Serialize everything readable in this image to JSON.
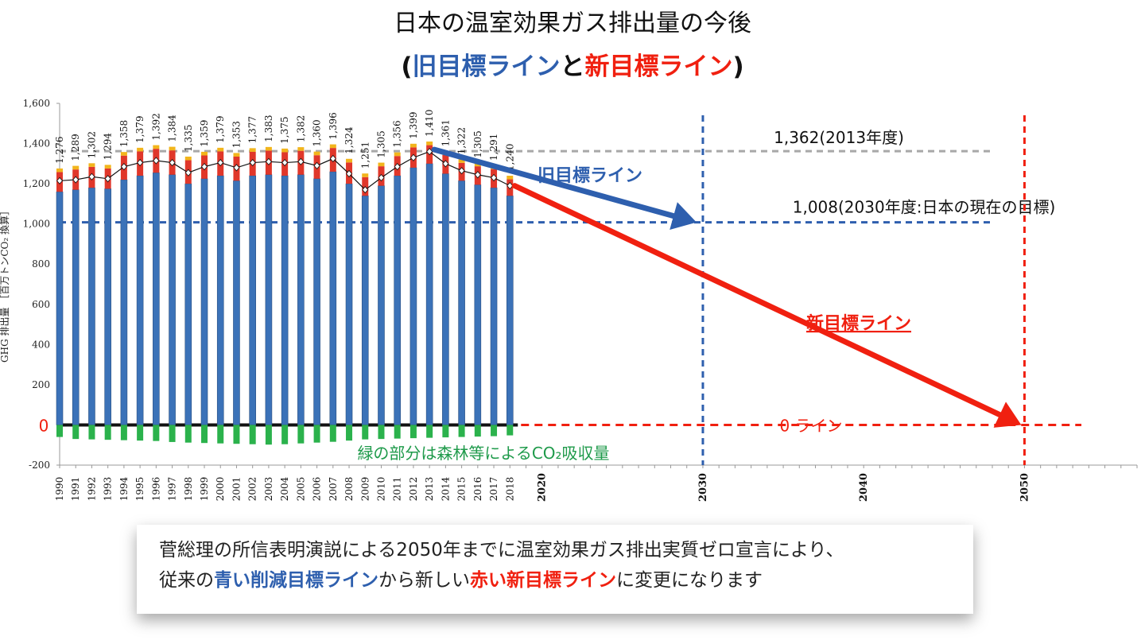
{
  "title": "日本の温室効果ガス排出量の今後",
  "subtitle": {
    "open": "(",
    "old_line": "旧目標ライン",
    "connector": "と",
    "new_line": "新目標ライン",
    "close": ")"
  },
  "chart_data": {
    "type": "bar",
    "ylabel": "GHG 排出量 ［百万トンCO₂ 換算］",
    "ylim": [
      -200,
      1600
    ],
    "yticks": [
      -200,
      0,
      200,
      400,
      600,
      800,
      "1,000",
      "1,200",
      "1,400",
      "1,600"
    ],
    "xlim": [
      1990,
      2057
    ],
    "xticks_major": [
      "2020",
      "2030",
      "2040",
      "2050"
    ],
    "categories": [
      "1990",
      "1991",
      "1992",
      "1993",
      "1994",
      "1995",
      "1996",
      "1997",
      "1998",
      "1999",
      "2000",
      "2001",
      "2002",
      "2003",
      "2004",
      "2005",
      "2006",
      "2007",
      "2008",
      "2009",
      "2010",
      "2011",
      "2012",
      "2013",
      "2014",
      "2015",
      "2016",
      "2017",
      "2018"
    ],
    "totals": [
      1276,
      1289,
      1302,
      1294,
      1358,
      1379,
      1392,
      1384,
      1335,
      1359,
      1379,
      1353,
      1377,
      1383,
      1375,
      1382,
      1360,
      1396,
      1324,
      1251,
      1305,
      1356,
      1399,
      1410,
      1361,
      1322,
      1305,
      1291,
      1240
    ],
    "total_labels": [
      "1,276",
      "1,289",
      "1,302",
      "1,294",
      "1,358",
      "1,379",
      "1,392",
      "1,384",
      "1,335",
      "1,359",
      "1,379",
      "1,353",
      "1,377",
      "1,383",
      "1,375",
      "1,382",
      "1,360",
      "1,396",
      "1,324",
      "1,251",
      "1,305",
      "1,356",
      "1,399",
      "1,410",
      "1,361",
      "1,322",
      "1,305",
      "1,291",
      "1,240"
    ],
    "co2_values": [
      1160,
      1170,
      1180,
      1175,
      1220,
      1240,
      1255,
      1245,
      1200,
      1225,
      1240,
      1215,
      1240,
      1245,
      1240,
      1245,
      1225,
      1260,
      1200,
      1140,
      1190,
      1240,
      1280,
      1300,
      1250,
      1215,
      1195,
      1180,
      1140
    ],
    "net_values": [
      1215,
      1220,
      1235,
      1225,
      1285,
      1305,
      1315,
      1305,
      1255,
      1285,
      1305,
      1280,
      1305,
      1310,
      1305,
      1310,
      1290,
      1325,
      1250,
      1170,
      1230,
      1285,
      1330,
      1360,
      1300,
      1265,
      1245,
      1230,
      1190
    ],
    "sink_values": [
      -60,
      -70,
      -72,
      -74,
      -76,
      -78,
      -80,
      -85,
      -88,
      -90,
      -92,
      -94,
      -96,
      -98,
      -96,
      -92,
      -88,
      -84,
      -78,
      -72,
      -70,
      -68,
      -66,
      -64,
      -62,
      -60,
      -58,
      -56,
      -52
    ],
    "colors": {
      "co2": "#3b72b8",
      "sink": "#2bb24c",
      "upper": "#e0372a",
      "old_target": "#2e5fae",
      "new_target": "#f02010",
      "ref_2013": "#a8a8a8",
      "caption_sink": "#1e9a4a"
    },
    "ref_2013": {
      "value": 1362,
      "label": "1,362(2013年度)"
    },
    "target_2030": {
      "value": 1008,
      "year": 2030,
      "label": "1,008(2030年度:日本の現在の目標)"
    },
    "zero": {
      "label": "0",
      "line_label": "0 ライン",
      "year": 2050
    },
    "old_arrow_label": "旧目標ライン",
    "new_arrow_label": "新目標ライン",
    "sink_caption": "緑の部分は森林等によるCO₂吸収量"
  },
  "caption": {
    "line1": "菅総理の所信表明演説による2050年までに温室効果ガス排出実質ゼロ宣言により、",
    "line2_a": "従来の",
    "line2_blue": "青い削減目標ライン",
    "line2_b": "から新しい",
    "line2_red": "赤い新目標ライン",
    "line2_c": "に変更になります"
  }
}
